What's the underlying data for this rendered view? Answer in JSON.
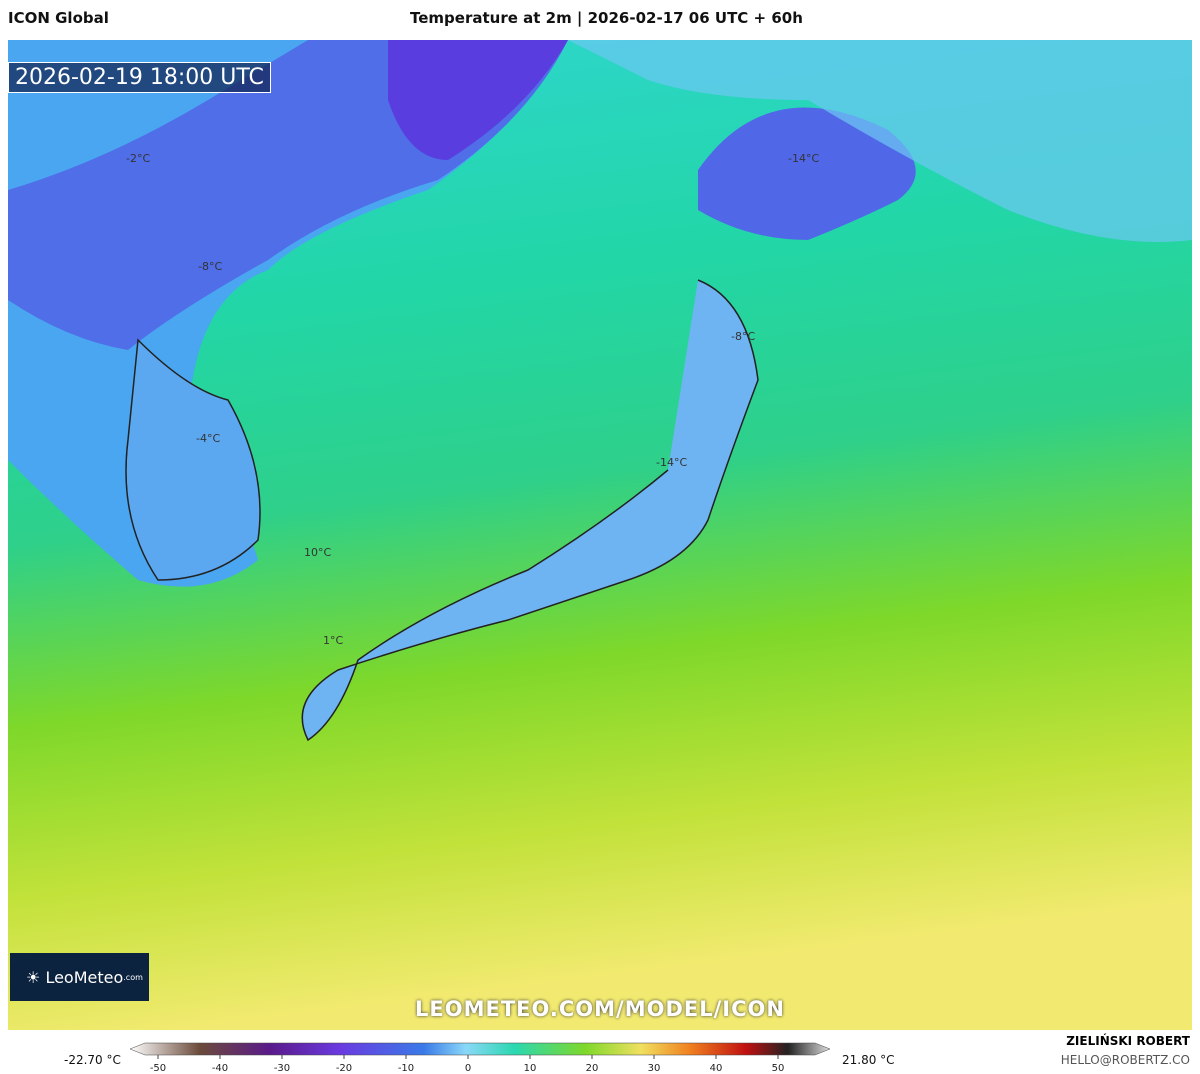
{
  "header": {
    "model": "ICON Global",
    "title": "Temperature at 2m | 2026-02-17 06 UTC + 60h"
  },
  "timestamp": "2026-02-19 18:00 UTC",
  "map_labels": [
    "-2°C",
    "-8°C",
    "-4°C",
    "10°C",
    "1°C",
    "-14°C",
    "-8°C",
    "-14°C"
  ],
  "logo": {
    "brand": "LeoMeteo",
    "suffix": ".com"
  },
  "watermark": "LEOMETEO.COM/MODEL/ICON",
  "colorbar": {
    "min_label": "-22.70 °C",
    "max_label": "21.80 °C",
    "ticks": [
      -50,
      -40,
      -30,
      -20,
      -10,
      0,
      10,
      20,
      30,
      40,
      50
    ]
  },
  "credit": {
    "author": "ZIELIŃSKI ROBERT",
    "email": "HELLO@ROBERTZ.CO"
  }
}
